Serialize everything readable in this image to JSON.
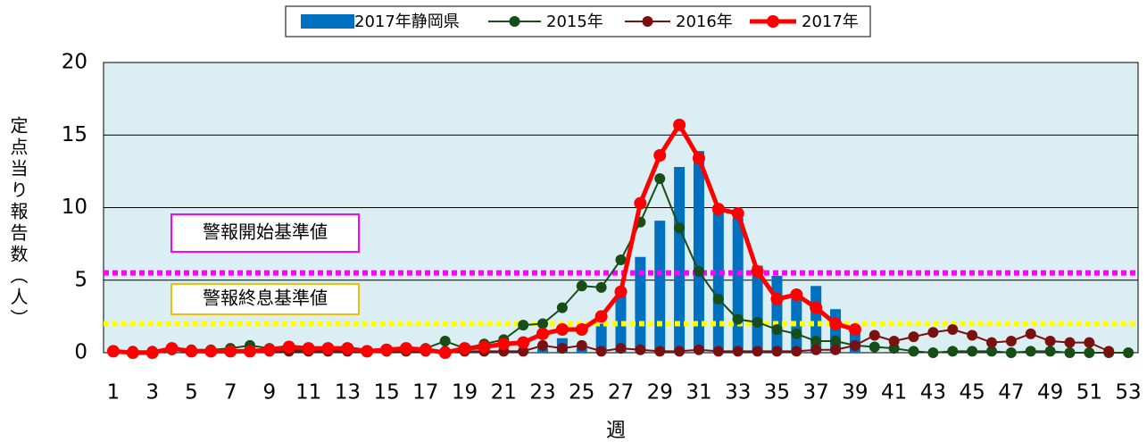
{
  "chart_data": {
    "type": "bar",
    "x_label": "週",
    "y_label": "定点当り報告数（人）",
    "categories": [
      "1",
      null,
      "3",
      null,
      "5",
      null,
      "7",
      null,
      "9",
      null,
      "11",
      null,
      "13",
      null,
      "15",
      null,
      "17",
      null,
      "19",
      null,
      "21",
      null,
      "23",
      null,
      "25",
      null,
      "27",
      null,
      "29",
      null,
      "31",
      null,
      "33",
      null,
      "35",
      null,
      "37",
      null,
      "39",
      null,
      "41",
      null,
      "43",
      null,
      "45",
      null,
      "47",
      null,
      "49",
      null,
      "51",
      null,
      "53"
    ],
    "ylim": [
      0,
      20
    ],
    "yticks": [
      0,
      5,
      10,
      15,
      20
    ],
    "grid": true,
    "legend": "top",
    "series": [
      {
        "name": "2017年静岡県",
        "type": "bar",
        "color": "#0070c0",
        "values": [
          0.1,
          0.1,
          0.1,
          0.1,
          0.1,
          0.1,
          0.1,
          0.1,
          0.1,
          0.1,
          0.1,
          0.1,
          0.1,
          0.1,
          0.1,
          0.1,
          0.1,
          0.1,
          0.1,
          0.1,
          0.2,
          0.2,
          0.3,
          1.0,
          0.3,
          2.0,
          4.0,
          6.6,
          9.1,
          12.8,
          13.9,
          9.9,
          9.3,
          6.0,
          5.3,
          4.0,
          4.6,
          3.0,
          1.7,
          null,
          null,
          null,
          null,
          null,
          null,
          null,
          null,
          null,
          null,
          null,
          null,
          null,
          null
        ]
      },
      {
        "name": "2015年",
        "type": "line",
        "color": "#174d17",
        "values": [
          0.1,
          0.1,
          0.1,
          0.2,
          0.2,
          0.2,
          0.3,
          0.5,
          0.3,
          0.2,
          0.2,
          0.2,
          0.2,
          0.1,
          0.2,
          0.2,
          0.3,
          0.8,
          0.3,
          0.6,
          0.9,
          1.9,
          2.0,
          3.1,
          4.6,
          4.5,
          6.4,
          9.0,
          12.0,
          8.6,
          5.6,
          3.7,
          2.3,
          2.1,
          1.6,
          1.3,
          0.8,
          0.8,
          0.5,
          0.4,
          0.3,
          0.1,
          0.0,
          0.1,
          0.1,
          0.1,
          0.0,
          0.1,
          0.1,
          0.0,
          0.0,
          0.0,
          0.0
        ]
      },
      {
        "name": "2016年",
        "type": "line",
        "color": "#7b1010",
        "values": [
          0.1,
          0.1,
          0.1,
          0.2,
          0.1,
          0.1,
          0.1,
          0.1,
          0.1,
          0.1,
          0.1,
          0.1,
          0.1,
          0.1,
          0.1,
          0.1,
          0.1,
          0.1,
          0.1,
          0.1,
          0.1,
          0.1,
          0.5,
          0.3,
          0.5,
          0.1,
          0.3,
          0.2,
          0.1,
          0.1,
          0.2,
          0.1,
          0.1,
          0.1,
          0.1,
          0.1,
          0.2,
          0.2,
          0.5,
          1.2,
          0.8,
          1.1,
          1.4,
          1.6,
          1.2,
          0.7,
          0.8,
          1.3,
          0.8,
          0.7,
          0.7,
          0.1,
          null
        ]
      },
      {
        "name": "2017年",
        "type": "line",
        "color": "#ff0000",
        "values": [
          0.1,
          0.0,
          0.0,
          0.3,
          0.1,
          0.1,
          0.1,
          0.1,
          0.2,
          0.4,
          0.3,
          0.3,
          0.3,
          0.1,
          0.2,
          0.3,
          0.2,
          0.0,
          0.3,
          0.4,
          0.6,
          0.7,
          1.3,
          1.6,
          1.6,
          2.5,
          4.2,
          10.3,
          13.6,
          15.7,
          13.4,
          9.9,
          9.6,
          5.6,
          3.7,
          4.0,
          3.1,
          2.0,
          1.6,
          null,
          null,
          null,
          null,
          null,
          null,
          null,
          null,
          null,
          null,
          null,
          null,
          null,
          null
        ]
      }
    ],
    "annotations": [
      {
        "text": "警報開始基準値",
        "value": 5.5,
        "color": "#ff00ff"
      },
      {
        "text": "警報終息基準値",
        "value": 2,
        "color": "#ffff00"
      }
    ]
  }
}
